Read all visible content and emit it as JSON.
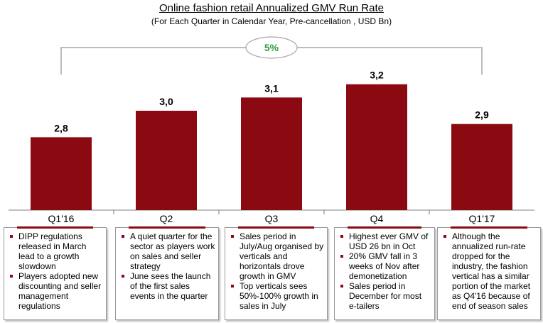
{
  "header": {
    "title": "Online fashion retail Annualized GMV Run Rate",
    "subtitle": "(For Each Quarter in Calendar Year, Pre-cancellation , USD Bn)"
  },
  "chart_data": {
    "type": "bar",
    "title": "Online fashion retail Annualized GMV Run Rate",
    "subtitle": "(For Each Quarter in Calendar Year, Pre-cancellation , USD Bn)",
    "categories": [
      "Q1'16",
      "Q2",
      "Q3",
      "Q4",
      "Q1'17"
    ],
    "values": [
      2.8,
      3.0,
      3.1,
      3.2,
      2.9
    ],
    "value_labels": [
      "2,8",
      "3,0",
      "3,1",
      "3,2",
      "2,9"
    ],
    "bar_color": "#8b0a12",
    "ylim": [
      2.25,
      3.45
    ],
    "grid": false,
    "annotation": {
      "label": "5%",
      "from": "Q1'16",
      "to": "Q1'17",
      "color": "#2e9b3d"
    }
  },
  "notes": [
    {
      "items": [
        "DIPP regulations released in March lead to a growth slowdown",
        "Players adopted new discounting and seller management regulations"
      ]
    },
    {
      "items": [
        "A quiet quarter for the sector as players work on sales and seller strategy",
        "June sees the launch of the first sales events in the quarter"
      ]
    },
    {
      "items": [
        "Sales period in July/Aug organised by verticals and horizontals drove growth in GMV",
        "Top verticals sees 50%-100% growth in sales in July"
      ]
    },
    {
      "items": [
        "Highest ever GMV of USD 26 bn in Oct",
        "20% GMV fall in 3 weeks of Nov after demonetization",
        "Sales period in December for most e-tailers"
      ]
    },
    {
      "items": [
        "Although the annualized run-rate dropped for the industry, the fashion vertical has a similar portion of the market as Q4'16 because of end of season sales"
      ]
    }
  ]
}
